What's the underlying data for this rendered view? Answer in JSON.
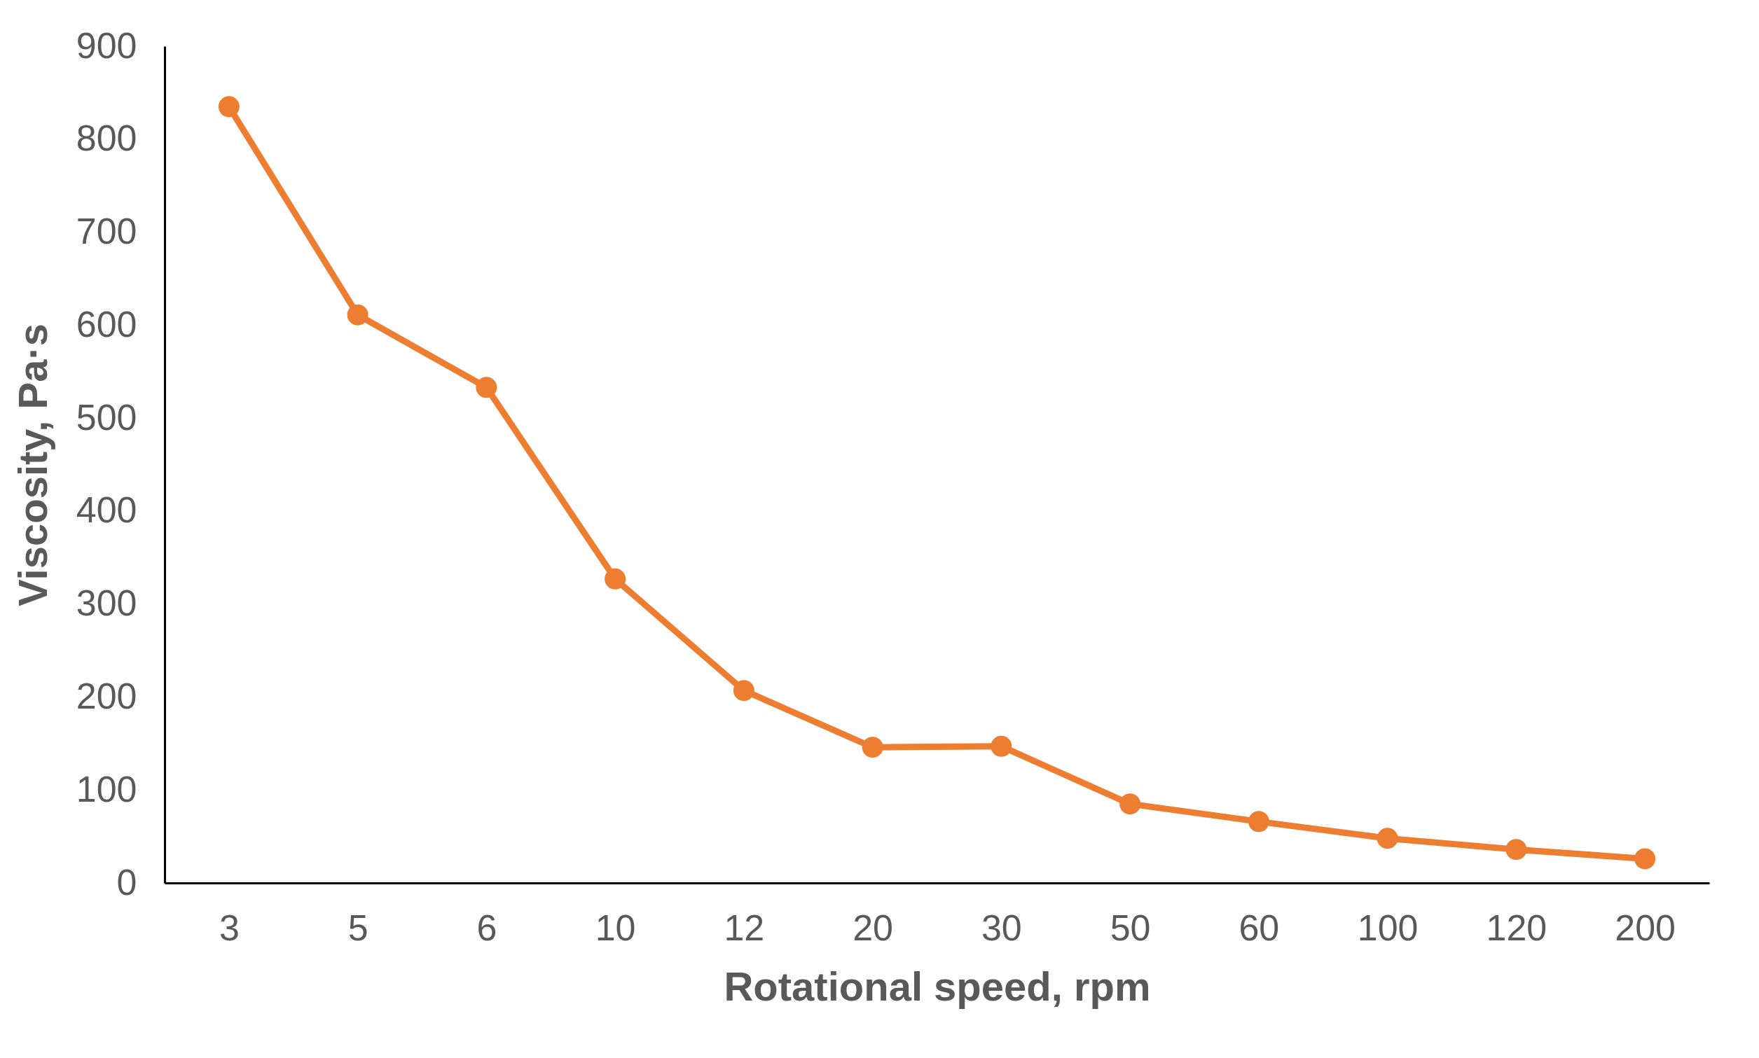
{
  "chart_data": {
    "type": "line",
    "xlabel": "Rotational speed, rpm",
    "ylabel": "Viscosity, Pa·s",
    "categories": [
      "3",
      "5",
      "6",
      "10",
      "12",
      "20",
      "30",
      "50",
      "60",
      "100",
      "120",
      "200"
    ],
    "series": [
      {
        "color": "#ed7d31",
        "values": [
          835,
          611,
          533,
          327,
          207,
          146,
          147,
          85,
          66,
          48,
          36,
          26
        ]
      }
    ],
    "ylim": [
      0,
      900
    ],
    "yticks": [
      0,
      100,
      200,
      300,
      400,
      500,
      600,
      700,
      800,
      900
    ],
    "grid": false,
    "marker": "circle",
    "line_style": "solid"
  }
}
